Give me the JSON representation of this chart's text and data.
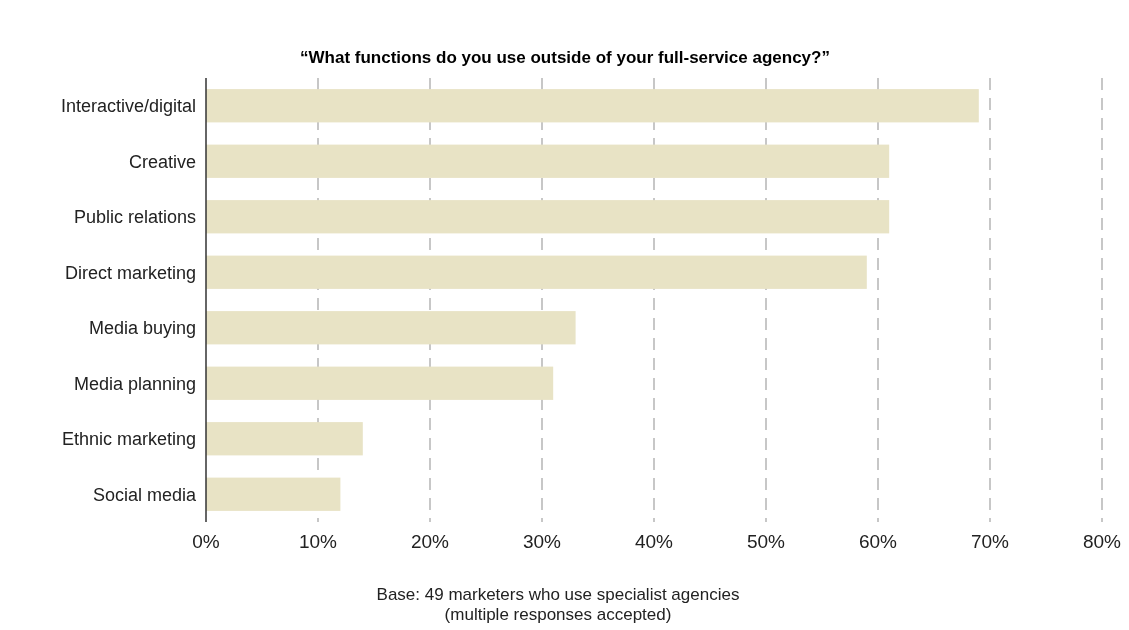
{
  "chart_data": {
    "type": "bar",
    "orientation": "horizontal",
    "title": "“What functions do you use outside of your full-service agency?”",
    "categories": [
      "Interactive/digital",
      "Creative",
      "Public relations",
      "Direct marketing",
      "Media buying",
      "Media planning",
      "Ethnic marketing",
      "Social media"
    ],
    "values": [
      69,
      61,
      61,
      59,
      33,
      31,
      14,
      12
    ],
    "color": "#e8e3c5",
    "xlim": [
      0,
      80
    ],
    "xticks": [
      {
        "value": 0,
        "label": "0%"
      },
      {
        "value": 10,
        "label": "10%"
      },
      {
        "value": 20,
        "label": "20%"
      },
      {
        "value": 30,
        "label": "30%"
      },
      {
        "value": 40,
        "label": "40%"
      },
      {
        "value": 50,
        "label": "50%"
      },
      {
        "value": 60,
        "label": "60%"
      },
      {
        "value": 70,
        "label": "70%"
      },
      {
        "value": 80,
        "label": "80%"
      }
    ],
    "grid": "x",
    "annotations": [
      "Base: 49 marketers who use specialist agencies",
      "(multiple responses accepted)"
    ]
  }
}
